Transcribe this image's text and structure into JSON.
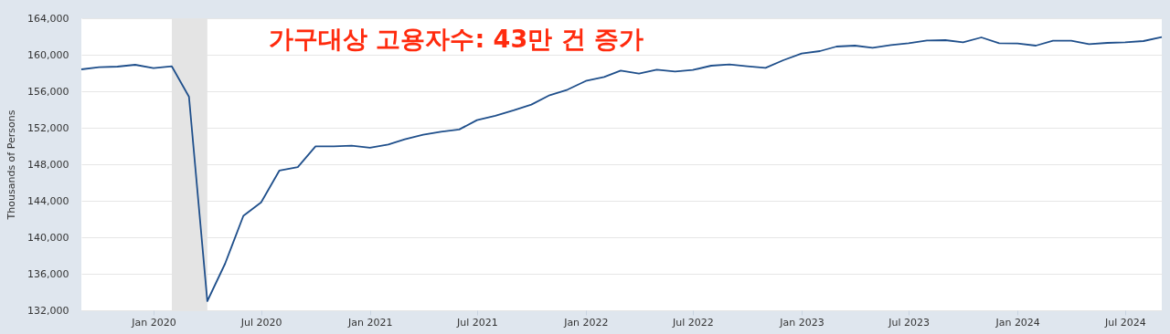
{
  "chart_data": {
    "type": "line",
    "title": "가구대상 고용자수: 43만 건 증가",
    "ylabel": "Thousands of Persons",
    "x": [
      "2019-09",
      "2019-10",
      "2019-11",
      "2019-12",
      "2020-01",
      "2020-02",
      "2020-03",
      "2020-04",
      "2020-05",
      "2020-06",
      "2020-07",
      "2020-08",
      "2020-09",
      "2020-10",
      "2020-11",
      "2020-12",
      "2021-01",
      "2021-02",
      "2021-03",
      "2021-04",
      "2021-05",
      "2021-06",
      "2021-07",
      "2021-08",
      "2021-09",
      "2021-10",
      "2021-11",
      "2021-12",
      "2022-01",
      "2022-02",
      "2022-03",
      "2022-04",
      "2022-05",
      "2022-06",
      "2022-07",
      "2022-08",
      "2022-09",
      "2022-10",
      "2022-11",
      "2022-12",
      "2023-01",
      "2023-02",
      "2023-03",
      "2023-04",
      "2023-05",
      "2023-06",
      "2023-07",
      "2023-08",
      "2023-09",
      "2023-10",
      "2023-11",
      "2023-12",
      "2024-01",
      "2024-02",
      "2024-03",
      "2024-04",
      "2024-05",
      "2024-06",
      "2024-07",
      "2024-08",
      "2024-09"
    ],
    "series": [
      {
        "color": "#1f4f8b",
        "values": [
          158400,
          158630,
          158700,
          158900,
          158530,
          158730,
          155400,
          133000,
          137100,
          142350,
          143820,
          147320,
          147680,
          149970,
          149970,
          150040,
          149810,
          150170,
          150740,
          151230,
          151570,
          151810,
          152840,
          153310,
          153910,
          154540,
          155570,
          156170,
          157130,
          157560,
          158260,
          157930,
          158370,
          158170,
          158330,
          158800,
          158930,
          158730,
          158560,
          159400,
          160130,
          160400,
          160900,
          161000,
          160760,
          161060,
          161260,
          161560,
          161600,
          161360,
          161900,
          161260,
          161230,
          161000,
          161530,
          161530,
          161160,
          161300,
          161360,
          161500,
          161930
        ]
      }
    ],
    "xlim": [
      "2019-09",
      "2024-09"
    ],
    "xticks": [
      {
        "value": "2020-01",
        "label": "Jan 2020"
      },
      {
        "value": "2020-07",
        "label": "Jul 2020"
      },
      {
        "value": "2021-01",
        "label": "Jan 2021"
      },
      {
        "value": "2021-07",
        "label": "Jul 2021"
      },
      {
        "value": "2022-01",
        "label": "Jan 2022"
      },
      {
        "value": "2022-07",
        "label": "Jul 2022"
      },
      {
        "value": "2023-01",
        "label": "Jan 2023"
      },
      {
        "value": "2023-07",
        "label": "Jul 2023"
      },
      {
        "value": "2024-01",
        "label": "Jan 2024"
      },
      {
        "value": "2024-07",
        "label": "Jul 2024"
      }
    ],
    "ylim": [
      132000,
      164000
    ],
    "yticks": [
      {
        "value": 132000,
        "label": "132,000"
      },
      {
        "value": 136000,
        "label": "136,000"
      },
      {
        "value": 140000,
        "label": "140,000"
      },
      {
        "value": 144000,
        "label": "144,000"
      },
      {
        "value": 148000,
        "label": "148,000"
      },
      {
        "value": 152000,
        "label": "152,000"
      },
      {
        "value": 156000,
        "label": "156,000"
      },
      {
        "value": 160000,
        "label": "160,000"
      },
      {
        "value": 164000,
        "label": "164,000"
      }
    ],
    "bands": [
      {
        "axis": "x",
        "from": "2020-02",
        "to": "2020-04",
        "color": "#e4e4e4"
      }
    ],
    "grid": "y",
    "legend": false,
    "marker": "none",
    "line_style": "solid"
  }
}
